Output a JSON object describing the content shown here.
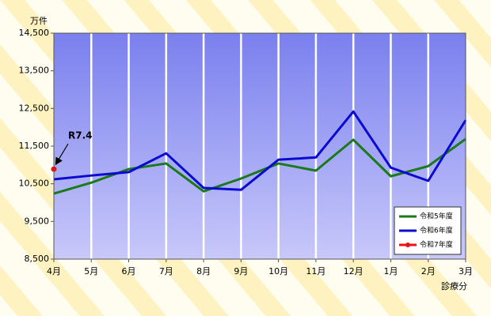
{
  "chart_data": {
    "type": "line",
    "y_unit": "万件",
    "x_label": "診療分",
    "annotation": "R7.4",
    "categories": [
      "4月",
      "5月",
      "6月",
      "7月",
      "8月",
      "9月",
      "10月",
      "11月",
      "12月",
      "1月",
      "2月",
      "3月"
    ],
    "series": [
      {
        "name": "令和5年度",
        "color": "#1a7a1a",
        "values": [
          10240,
          10530,
          10890,
          11040,
          10300,
          10640,
          11040,
          10850,
          11670,
          10700,
          10970,
          11690
        ]
      },
      {
        "name": "令和6年度",
        "color": "#0a0ad0",
        "values": [
          10620,
          10720,
          10810,
          11310,
          10390,
          10340,
          11140,
          11200,
          12420,
          10930,
          10580,
          12190
        ]
      },
      {
        "name": "令和7年度",
        "color": "#ee1111",
        "values": [
          10890,
          null,
          null,
          null,
          null,
          null,
          null,
          null,
          null,
          null,
          null,
          null
        ]
      }
    ],
    "ylim": [
      8500,
      14500
    ],
    "yticks": [
      {
        "value": 8500,
        "label": "8,500"
      },
      {
        "value": 9500,
        "label": "9,500"
      },
      {
        "value": 10500,
        "label": "10,500"
      },
      {
        "value": 11500,
        "label": "11,500"
      },
      {
        "value": 12500,
        "label": "12,500"
      },
      {
        "value": 13500,
        "label": "13,500"
      },
      {
        "value": 14500,
        "label": "14,500"
      }
    ],
    "grid": "x",
    "legend": "lower right"
  }
}
